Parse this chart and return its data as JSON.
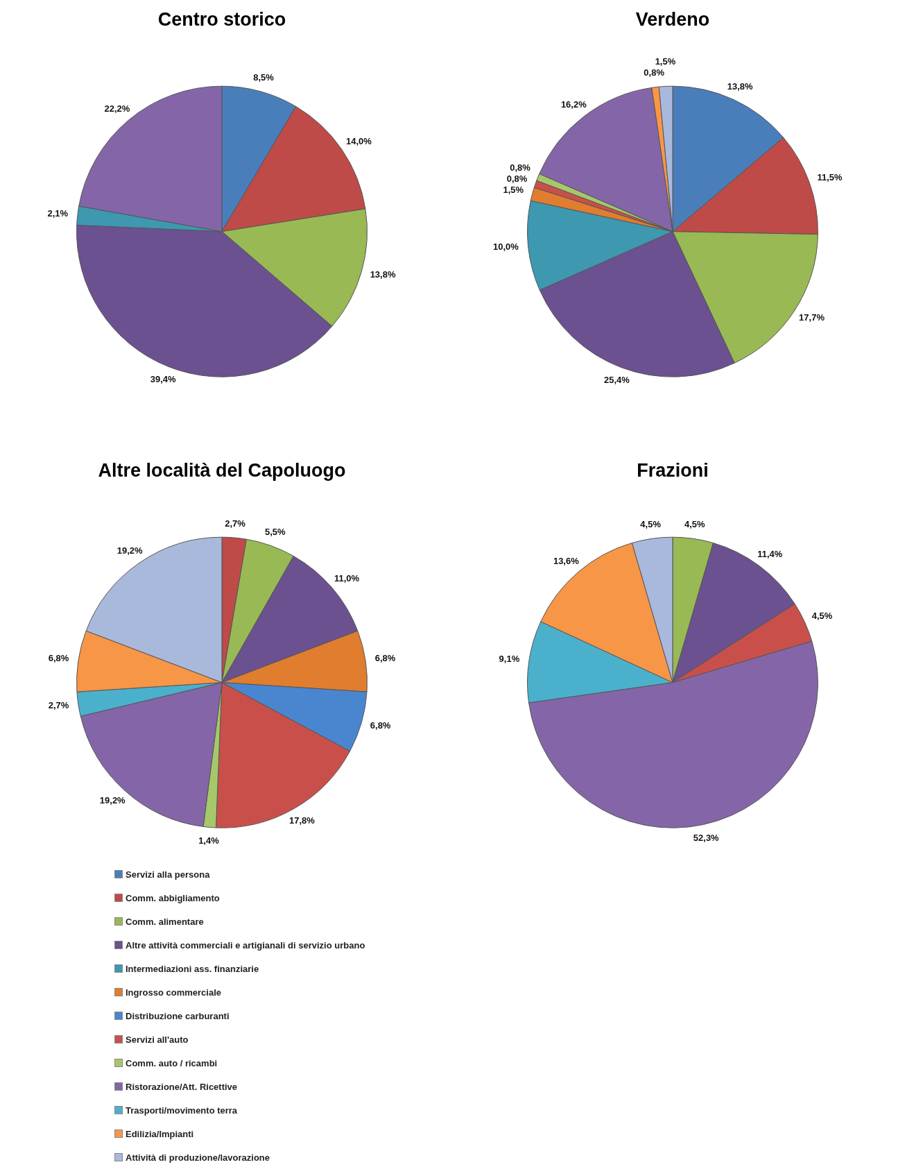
{
  "chart_data": [
    {
      "type": "pie",
      "title": "Centro storico",
      "legend": false,
      "categories": [
        null,
        null,
        null,
        null,
        null,
        null,
        null,
        null,
        null,
        null,
        null,
        null,
        null
      ],
      "values": [
        8.5,
        14.0,
        13.8,
        39.4,
        2.1,
        null,
        null,
        null,
        null,
        22.2,
        null,
        null,
        null
      ],
      "value_labels": [
        "8,5%",
        "14,0%",
        "13,8%",
        "39,4%",
        "2,1%",
        null,
        null,
        null,
        null,
        "22,2%",
        null,
        null,
        null
      ],
      "colors": [
        "#4a7ebb",
        "#be4b48",
        "#98b954",
        "#6b5190",
        "#3d98b0",
        "#e07d2e",
        "#4a86d0",
        "#c9504a",
        "#a6c76a",
        "#8466a8",
        "#4bb0cc",
        "#f79646",
        "#a9b9dc"
      ]
    },
    {
      "type": "pie",
      "title": "Verdeno",
      "legend": false,
      "categories": [
        null,
        null,
        null,
        null,
        null,
        null,
        null,
        null,
        null,
        null,
        null,
        null,
        null
      ],
      "values": [
        13.8,
        11.5,
        17.7,
        25.4,
        10.0,
        1.5,
        null,
        0.8,
        0.8,
        16.2,
        null,
        0.8,
        1.5
      ],
      "value_labels": [
        "13,8%",
        "11,5%",
        "17,7%",
        "25,4%",
        "10,0%",
        "1,5%",
        null,
        "0,8%",
        "0,8%",
        "16,2%",
        null,
        "0,8%",
        "1,5%"
      ],
      "colors": [
        "#4a7ebb",
        "#be4b48",
        "#98b954",
        "#6b5190",
        "#3d98b0",
        "#e07d2e",
        "#4a86d0",
        "#c9504a",
        "#a6c76a",
        "#8466a8",
        "#4bb0cc",
        "#f79646",
        "#a9b9dc"
      ]
    },
    {
      "type": "pie",
      "title": "Altre località del Capoluogo",
      "legend": "bottom",
      "categories": [
        "Servizi alla persona",
        "Comm. abbigliamento",
        "Comm. alimentare",
        "Altre attività commerciali e artigianali di servizio urbano",
        "Intermediazioni ass. finanziarie",
        "Ingrosso commerciale",
        "Distribuzione carburanti",
        "Servizi all'auto",
        "Comm. auto / ricambi",
        "Ristorazione/Att. Ricettive",
        "Trasporti/movimento terra",
        "Edilizia/Impianti",
        "Attività di produzione/lavorazione"
      ],
      "values": [
        null,
        2.7,
        5.5,
        11.0,
        null,
        6.8,
        6.8,
        17.8,
        1.4,
        19.2,
        2.7,
        6.8,
        19.2
      ],
      "value_labels": [
        null,
        "2,7%",
        "5,5%",
        "11,0%",
        null,
        "6,8%",
        "6,8%",
        "17,8%",
        "1,4%",
        "19,2%",
        "2,7%",
        "6,8%",
        "19,2%"
      ],
      "colors": [
        "#4a7ebb",
        "#be4b48",
        "#98b954",
        "#6b5190",
        "#3d98b0",
        "#e07d2e",
        "#4a86d0",
        "#c9504a",
        "#a6c76a",
        "#8466a8",
        "#4bb0cc",
        "#f79646",
        "#a9b9dc"
      ]
    },
    {
      "type": "pie",
      "title": "Frazioni",
      "legend": false,
      "categories": [
        null,
        null,
        null,
        null,
        null,
        null,
        null,
        null,
        null,
        null,
        null,
        null,
        null
      ],
      "values": [
        null,
        null,
        4.5,
        11.4,
        null,
        null,
        null,
        4.5,
        null,
        52.3,
        9.1,
        13.6,
        4.5
      ],
      "value_labels": [
        null,
        null,
        "4,5%",
        "11,4%",
        null,
        null,
        null,
        "4,5%",
        null,
        "52,3%",
        "9,1%",
        "13,6%",
        "4,5%"
      ],
      "colors": [
        "#4a7ebb",
        "#be4b48",
        "#98b954",
        "#6b5190",
        "#3d98b0",
        "#e07d2e",
        "#4a86d0",
        "#c9504a",
        "#a6c76a",
        "#8466a8",
        "#4bb0cc",
        "#f79646",
        "#a9b9dc"
      ]
    }
  ]
}
